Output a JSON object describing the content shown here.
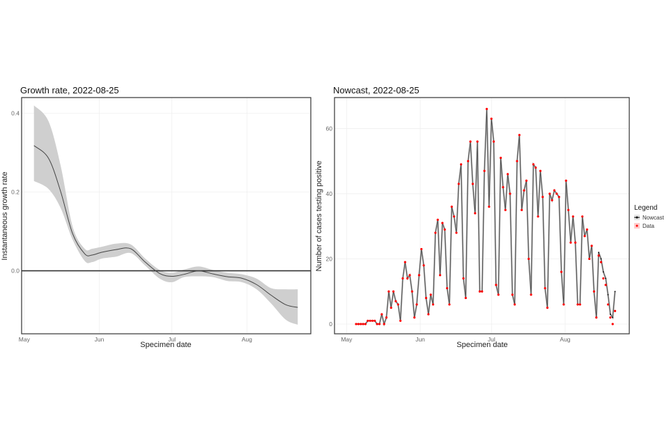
{
  "chart_data": [
    {
      "type": "line",
      "title": "Growth rate, 2022-08-25",
      "xlabel": "Specimen date",
      "ylabel": "Instantaneous growth rate",
      "x_unit": "days since 2022-05-01",
      "xlim": [
        -1.1,
        118.4
      ],
      "ylim": [
        -0.16,
        0.44
      ],
      "x_ticks": [
        {
          "label": "May",
          "value": 0
        },
        {
          "label": "Jun",
          "value": 31
        },
        {
          "label": "Jul",
          "value": 61
        },
        {
          "label": "Aug",
          "value": 92
        }
      ],
      "y_ticks": [
        {
          "label": "0.0",
          "value": 0
        },
        {
          "label": "0.2",
          "value": 0.2
        },
        {
          "label": "0.4",
          "value": 0.4
        }
      ],
      "reference_line": 0,
      "grid": true,
      "x": [
        4,
        10,
        15,
        20,
        25,
        28,
        32,
        38,
        44,
        50,
        56,
        61,
        66,
        72,
        78,
        84,
        90,
        96,
        102,
        108,
        113
      ],
      "series": [
        {
          "name": "mean",
          "values": [
            0.318,
            0.286,
            0.202,
            0.094,
            0.043,
            0.04,
            0.047,
            0.054,
            0.056,
            0.022,
            -0.007,
            -0.014,
            -0.009,
            0.0,
            -0.008,
            -0.015,
            -0.019,
            -0.035,
            -0.062,
            -0.086,
            -0.093
          ]
        },
        {
          "name": "lower",
          "values": [
            0.228,
            0.208,
            0.16,
            0.079,
            0.025,
            0.022,
            0.031,
            0.036,
            0.045,
            0.013,
            -0.02,
            -0.029,
            -0.016,
            -0.014,
            -0.016,
            -0.026,
            -0.029,
            -0.047,
            -0.083,
            -0.124,
            -0.137
          ]
        },
        {
          "name": "upper",
          "values": [
            0.42,
            0.38,
            0.268,
            0.112,
            0.056,
            0.056,
            0.061,
            0.069,
            0.067,
            0.031,
            0.002,
            -0.005,
            0.003,
            0.011,
            0.002,
            -0.005,
            -0.009,
            -0.02,
            -0.044,
            -0.047,
            -0.047
          ]
        }
      ]
    },
    {
      "type": "line",
      "title": "Nowcast, 2022-08-25",
      "xlabel": "Specimen date",
      "ylabel": "Number of cases testing positive",
      "x_unit": "days since 2022-05-01",
      "xlim": [
        -5.1,
        119
      ],
      "ylim": [
        -3,
        69.5
      ],
      "x_ticks": [
        {
          "label": "May",
          "value": 0
        },
        {
          "label": "Jun",
          "value": 31
        },
        {
          "label": "Jul",
          "value": 61
        },
        {
          "label": "Aug",
          "value": 92
        }
      ],
      "y_ticks": [
        {
          "label": "0",
          "value": 0
        },
        {
          "label": "20",
          "value": 20
        },
        {
          "label": "40",
          "value": 40
        },
        {
          "label": "60",
          "value": 60
        }
      ],
      "grid": true,
      "x_day_start": 4,
      "x_day_end": 113,
      "legend": {
        "title": "Legend",
        "position": "right",
        "entries": [
          {
            "label": "Nowcast",
            "color": "#000000"
          },
          {
            "label": "Data",
            "color": "#ff0000"
          }
        ]
      },
      "series": [
        {
          "name": "Data",
          "color": "#ff0000",
          "values": [
            0,
            0,
            0,
            0,
            0,
            1,
            1,
            1,
            1,
            0,
            0,
            3,
            0,
            2,
            10,
            5,
            10,
            7,
            6,
            1,
            14,
            19,
            14,
            15,
            10,
            2,
            6,
            15,
            23,
            18,
            8,
            3,
            9,
            6,
            28,
            32,
            15,
            31,
            29,
            11,
            6,
            36,
            33,
            28,
            43,
            49,
            14,
            8,
            50,
            56,
            43,
            34,
            56,
            10,
            10,
            47,
            66,
            36,
            63,
            56,
            12,
            9,
            51,
            42,
            35,
            46,
            40,
            9,
            6,
            50,
            58,
            35,
            41,
            44,
            20,
            9,
            49,
            48,
            33,
            47,
            39,
            11,
            5,
            40,
            38,
            41,
            40,
            39,
            16,
            6,
            44,
            35,
            25,
            33,
            25,
            6,
            6,
            33,
            27,
            29,
            20,
            24,
            10,
            2,
            21,
            19,
            14,
            12,
            6,
            2,
            0,
            4
          ]
        },
        {
          "name": "Nowcast",
          "color": "#000000",
          "values": [
            0,
            0,
            0,
            0,
            0,
            1,
            1,
            1,
            1,
            0,
            0,
            3,
            0,
            2,
            10,
            5,
            10,
            7,
            6,
            1,
            14,
            19,
            14,
            15,
            10,
            2,
            6,
            15,
            23,
            18,
            8,
            3,
            9,
            6,
            28,
            32,
            15,
            31,
            29,
            11,
            6,
            36,
            33,
            28,
            43,
            49,
            14,
            8,
            50,
            56,
            43,
            34,
            56,
            10,
            10,
            47,
            66,
            36,
            63,
            56,
            12,
            9,
            51,
            42,
            35,
            46,
            40,
            9,
            6,
            50,
            58,
            35,
            41,
            44,
            20,
            9,
            49,
            48,
            33,
            47,
            39,
            11,
            5,
            40,
            38,
            41,
            40,
            39,
            16,
            6,
            44,
            35,
            25,
            33,
            25,
            6,
            6,
            33,
            27,
            29,
            20,
            24,
            10,
            2,
            22,
            20,
            16,
            14,
            9,
            3,
            2,
            10
          ]
        }
      ]
    }
  ]
}
